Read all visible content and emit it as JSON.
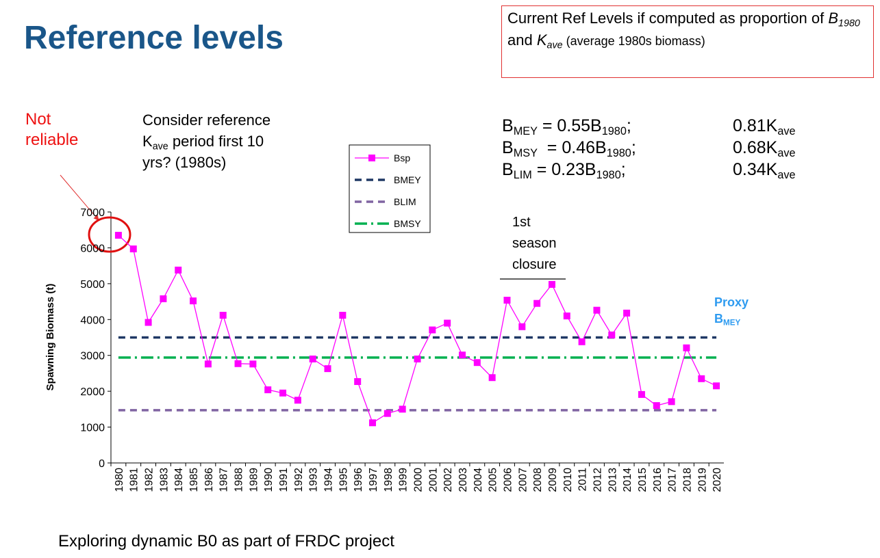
{
  "slide": {
    "title": "Reference levels",
    "box": [
      "Current Ref Levels if computed as proportion of ",
      "B",
      "1980",
      " and ",
      "K",
      "ave",
      " (average 1980s biomass)"
    ],
    "formulas": [
      {
        "b": "B",
        "b_sub": "MEY",
        "eq": " = 0.55B",
        "eq_sub": "1980",
        "end": ";",
        "k": "0.81K",
        "k_sub": "ave"
      },
      {
        "b": "B",
        "b_sub": "MSY",
        "eq": "  = 0.46B",
        "eq_sub": "1980",
        "end": ";",
        "k": "0.68K",
        "k_sub": "ave"
      },
      {
        "b": "B",
        "b_sub": "LIM",
        "eq": " = 0.23B",
        "eq_sub": "1980",
        "end": ";",
        "k": "0.34K",
        "k_sub": "ave"
      }
    ],
    "not_reliable": "Not reliable",
    "consider": [
      "Consider reference K",
      "ave",
      " period first 10 yrs? (1980s)"
    ],
    "closure": "1st season closure",
    "proxy": [
      "Proxy",
      "B",
      "MEY"
    ],
    "footer": "Exploring dynamic B0 as part of FRDC project"
  },
  "chart_data": {
    "type": "line",
    "y_label": "Spawning Biomass (t)",
    "categories": [
      "1980",
      "1981",
      "1982",
      "1983",
      "1984",
      "1985",
      "1986",
      "1987",
      "1988",
      "1989",
      "1990",
      "1991",
      "1992",
      "1993",
      "1994",
      "1995",
      "1996",
      "1997",
      "1998",
      "1999",
      "2000",
      "2001",
      "2002",
      "2003",
      "2004",
      "2005",
      "2006",
      "2007",
      "2008",
      "2009",
      "2010",
      "2011",
      "2012",
      "2013",
      "2014",
      "2015",
      "2016",
      "2017",
      "2018",
      "2019",
      "2020"
    ],
    "series": [
      {
        "name": "Bsp",
        "color": "#ff00ff",
        "style": "solid",
        "marker": "square",
        "values": [
          6350,
          5970,
          3920,
          4580,
          5380,
          4520,
          2760,
          4120,
          2770,
          2760,
          2040,
          1950,
          1750,
          2900,
          2630,
          4120,
          2270,
          1120,
          1380,
          1500,
          2900,
          3710,
          3900,
          3010,
          2800,
          2380,
          4540,
          3800,
          4450,
          4980,
          4100,
          3380,
          4260,
          3570,
          4180,
          1910,
          1600,
          1710,
          3210,
          2350,
          2150
        ]
      },
      {
        "name": "BMEY",
        "color": "#1f3864",
        "style": "dashed",
        "values": [
          3500,
          3500,
          3500,
          3500,
          3500,
          3500,
          3500,
          3500,
          3500,
          3500,
          3500,
          3500,
          3500,
          3500,
          3500,
          3500,
          3500,
          3500,
          3500,
          3500,
          3500,
          3500,
          3500,
          3500,
          3500,
          3500,
          3500,
          3500,
          3500,
          3500,
          3500,
          3500,
          3500,
          3500,
          3500,
          3500,
          3500,
          3500,
          3500,
          3500,
          3500
        ]
      },
      {
        "name": "BLIM",
        "color": "#8064a2",
        "style": "dashed",
        "values": [
          1470,
          1470,
          1470,
          1470,
          1470,
          1470,
          1470,
          1470,
          1470,
          1470,
          1470,
          1470,
          1470,
          1470,
          1470,
          1470,
          1470,
          1470,
          1470,
          1470,
          1470,
          1470,
          1470,
          1470,
          1470,
          1470,
          1470,
          1470,
          1470,
          1470,
          1470,
          1470,
          1470,
          1470,
          1470,
          1470,
          1470,
          1470,
          1470,
          1470,
          1470
        ]
      },
      {
        "name": "BMSY",
        "color": "#00b050",
        "style": "dash-dot",
        "values": [
          2940,
          2940,
          2940,
          2940,
          2940,
          2940,
          2940,
          2940,
          2940,
          2940,
          2940,
          2940,
          2940,
          2940,
          2940,
          2940,
          2940,
          2940,
          2940,
          2940,
          2940,
          2940,
          2940,
          2940,
          2940,
          2940,
          2940,
          2940,
          2940,
          2940,
          2940,
          2940,
          2940,
          2940,
          2940,
          2940,
          2940,
          2940,
          2940,
          2940,
          2940
        ]
      }
    ],
    "ylim": [
      0,
      7000
    ],
    "yticks": [
      0,
      1000,
      2000,
      3000,
      4000,
      5000,
      6000,
      7000
    ],
    "grid": false
  }
}
